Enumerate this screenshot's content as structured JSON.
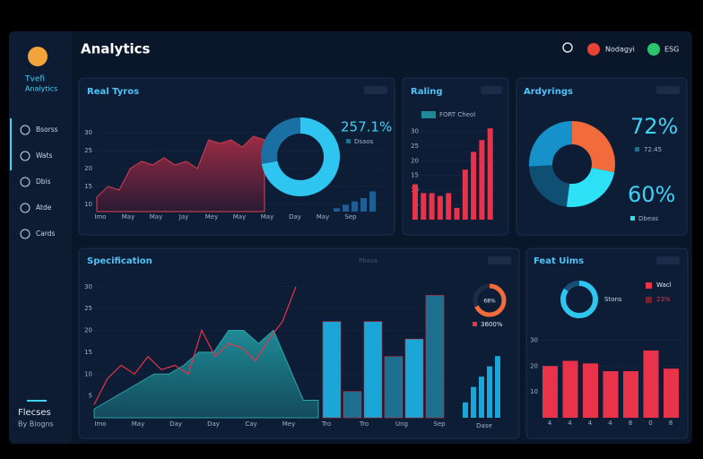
{
  "sidebar": {
    "brand": [
      "Tvefi",
      "Analytics"
    ],
    "nav": [
      "Bsorss",
      "Wats",
      "Dbis",
      "Atde",
      "Cards"
    ],
    "footer": [
      "Flecses",
      "By Biogns"
    ]
  },
  "header": {
    "title": "Analytics",
    "user": "Nodagyi",
    "badge": "ESG"
  },
  "real_trips": {
    "title": "Real Tyros",
    "ylim": [
      8,
      32
    ],
    "yticks": [
      10,
      15,
      20,
      25,
      30
    ],
    "categories": [
      "Imo",
      "May",
      "May",
      "Jay",
      "Mey",
      "May",
      "May",
      "Day",
      "May",
      "Sep"
    ],
    "area": [
      12,
      15,
      14,
      20,
      22,
      21,
      23,
      21,
      22,
      20,
      28,
      27,
      28,
      26,
      29,
      28
    ],
    "donut": [
      72,
      28
    ],
    "donut_value": "257.1%",
    "donut_label": "Dsaos",
    "bars": [
      1,
      2,
      3,
      4,
      6
    ],
    "bars_lim": [
      0,
      8
    ]
  },
  "rating": {
    "title": "Raling",
    "legend": "FORT Cheol",
    "ylim": [
      0,
      35
    ],
    "yticks": [
      5,
      10,
      15,
      20,
      25,
      30
    ],
    "values": [
      12,
      9,
      9,
      8,
      9,
      4,
      17,
      23,
      27,
      31
    ]
  },
  "earnings": {
    "title": "Ardyrings",
    "pie": [
      28,
      24,
      22,
      26
    ],
    "colors": [
      "#f26b3a",
      "#2ee0f5",
      "#0f4f73",
      "#1791c9"
    ],
    "value1": "72%",
    "value2": "72.45",
    "value3": "60%",
    "label": "Dbeas"
  },
  "specification": {
    "title": "Specification",
    "subtitle": "Pbasa",
    "ylim": [
      0,
      32
    ],
    "yticks": [
      5,
      10,
      15,
      20,
      25,
      30
    ],
    "categories": [
      "Imo",
      "May",
      "Day",
      "Day",
      "Cay",
      "Mey",
      "Tro",
      "Tro",
      "Ung",
      "Sep"
    ],
    "area": [
      2,
      4,
      6,
      8,
      10,
      10,
      12,
      15,
      15,
      20,
      20,
      17,
      20,
      12,
      4,
      4
    ],
    "line": [
      3,
      9,
      12,
      10,
      14,
      11,
      12,
      10,
      20,
      14,
      17,
      16,
      13,
      18,
      22,
      30
    ],
    "bars": [
      22,
      6,
      22,
      14,
      18,
      28
    ],
    "gauge": 68,
    "gauge_label": "68%",
    "gauge_value": "3600%",
    "small_bars": [
      6,
      12,
      16,
      20,
      24
    ],
    "small_lim": [
      0,
      30
    ],
    "small_label": "Dase"
  },
  "feature": {
    "title": "Feat Uims",
    "donut": [
      85,
      15
    ],
    "donut_label": "Stons",
    "legend": [
      "Wacl",
      "23%"
    ],
    "ylim": [
      0,
      35
    ],
    "yticks": [
      10,
      20,
      30
    ],
    "categories": [
      "4",
      "4",
      "4",
      "4",
      "8",
      "0",
      "8"
    ],
    "values": [
      20,
      22,
      21,
      18,
      18,
      26,
      19
    ]
  }
}
